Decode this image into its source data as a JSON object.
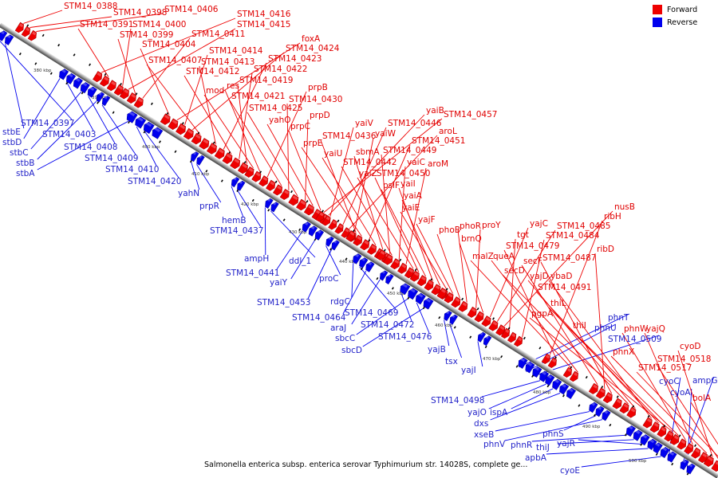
{
  "legend": {
    "forward_label": "Forward",
    "reverse_label": "Reverse",
    "forward_color": "#ee0000",
    "reverse_color": "#0000ee"
  },
  "caption": "Salmonella enterica subsp. enterica serovar Typhimurium str. 14028S, complete ge...",
  "ticks": [
    "380 kbp",
    "390 kbp",
    "400 kbp",
    "410 kbp",
    "420 kbp",
    "430 kbp",
    "440 kbp",
    "450 kbp",
    "460 kbp",
    "470 kbp",
    "480 kbp",
    "490 kbp",
    "500 kbp"
  ],
  "forward_genes": [
    "STM14_0388",
    "STM14_0398",
    "STM14_0406",
    "STM14_0416",
    "STM14_0391",
    "STM14_0400",
    "STM14_0415",
    "STM14_0399",
    "STM14_0411",
    "STM14_0404",
    "foxA",
    "STM14_0414",
    "STM14_0424",
    "STM14_0407",
    "STM14_0413",
    "STM14_0423",
    "STM14_0412",
    "STM14_0422",
    "STM14_0419",
    "mod",
    "res",
    "prpB",
    "STM14_0421",
    "STM14_0430",
    "STM14_0425",
    "prpD",
    "yahO",
    "prpC",
    "yaiB",
    "STM14_0457",
    "yaiV",
    "STM14_0446",
    "aroL",
    "STM14_0436",
    "yaiW",
    "prpE",
    "STM14_0451",
    "yaiU",
    "sbmA",
    "STM14_0449",
    "STM14_0442",
    "yaiC",
    "aroM",
    "yaiZ",
    "STM14_0450",
    "psiF",
    "yaiI",
    "yaiA",
    "yaiE",
    "yajF",
    "phoB",
    "phoR",
    "proY",
    "brnQ",
    "yajC",
    "STM14_0485",
    "nusB",
    "tgt",
    "STM14_0484",
    "ribH",
    "STM14_0479",
    "malZ",
    "queA",
    "secF",
    "ribD",
    "STM14_0487",
    "secD",
    "yajD",
    "ybaD",
    "STM14_0491",
    "thiL",
    "pgpA",
    "thiI",
    "phnW",
    "yajQ",
    "phnX",
    "cyoD",
    "STM14_0518",
    "STM14_0517",
    "bolA"
  ],
  "reverse_genes": [
    "STM14_0397",
    "stbE",
    "stbD",
    "STM14_0403",
    "stbC",
    "STM14_0408",
    "stbB",
    "STM14_0409",
    "stbA",
    "STM14_0410",
    "STM14_0420",
    "yahN",
    "prpR",
    "hemB",
    "STM14_0437",
    "ampH",
    "ddl_1",
    "STM14_0441",
    "yaiY",
    "proC",
    "STM14_0453",
    "rdgC",
    "STM14_0469",
    "STM14_0464",
    "araJ",
    "STM14_0472",
    "sbcC",
    "STM14_0476",
    "sbcD",
    "yajB",
    "tsx",
    "yajI",
    "phnT",
    "phnU",
    "STM14_0509",
    "STM14_0498",
    "yajO",
    "ispA",
    "dxs",
    "xseB",
    "phnS",
    "phnV",
    "phnR",
    "thiJ",
    "yajR",
    "apbA",
    "cyoE",
    "cyoC",
    "ampG",
    "cyoA"
  ]
}
